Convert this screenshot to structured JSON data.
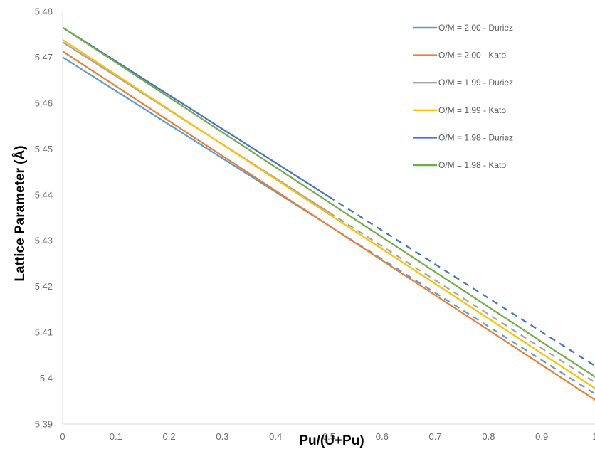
{
  "chart_data": {
    "type": "line",
    "title": "",
    "xlabel": "Pu/(U+Pu)",
    "ylabel": "Lattice Parameter (Å)",
    "xlim": [
      0,
      1
    ],
    "ylim": [
      5.39,
      5.48
    ],
    "x_ticks": [
      "0",
      "0.1",
      "0.2",
      "0.3",
      "0.4",
      "0.5",
      "0.6",
      "0.7",
      "0.8",
      "0.9",
      "1"
    ],
    "y_ticks": [
      "5.39",
      "5.4",
      "5.41",
      "5.42",
      "5.43",
      "5.44",
      "5.45",
      "5.46",
      "5.47",
      "5.48"
    ],
    "grid": false,
    "legend_position": "top-right",
    "series": [
      {
        "name": "O/M = 2.00 - Duriez",
        "color": "#5b9bd5",
        "solid": {
          "x": [
            0,
            0.5
          ],
          "y": [
            5.47,
            5.4333
          ]
        },
        "dashed": {
          "x": [
            0.5,
            1
          ],
          "y": [
            5.4333,
            5.3966
          ]
        }
      },
      {
        "name": "O/M = 2.00 - Kato",
        "color": "#ed7d31",
        "solid": {
          "x": [
            0,
            1
          ],
          "y": [
            5.4713,
            5.3953
          ]
        }
      },
      {
        "name": "O/M = 1.99 - Duriez",
        "color": "#a5a5a5",
        "solid": {
          "x": [
            0,
            0.5
          ],
          "y": [
            5.4733,
            5.4362
          ]
        },
        "dashed": {
          "x": [
            0.5,
            1
          ],
          "y": [
            5.4362,
            5.3991
          ]
        }
      },
      {
        "name": "O/M = 1.99 - Kato",
        "color": "#ffc000",
        "solid": {
          "x": [
            0,
            1
          ],
          "y": [
            5.4738,
            5.3978
          ]
        }
      },
      {
        "name": "O/M = 1.98 - Duriez",
        "color": "#4472c4",
        "solid": {
          "x": [
            0,
            0.5
          ],
          "y": [
            5.4765,
            5.4396
          ]
        },
        "dashed": {
          "x": [
            0.5,
            1
          ],
          "y": [
            5.4396,
            5.4027
          ]
        }
      },
      {
        "name": "O/M = 1.98 - Kato",
        "color": "#70ad47",
        "solid": {
          "x": [
            0,
            1
          ],
          "y": [
            5.4765,
            5.4003
          ]
        }
      }
    ]
  }
}
